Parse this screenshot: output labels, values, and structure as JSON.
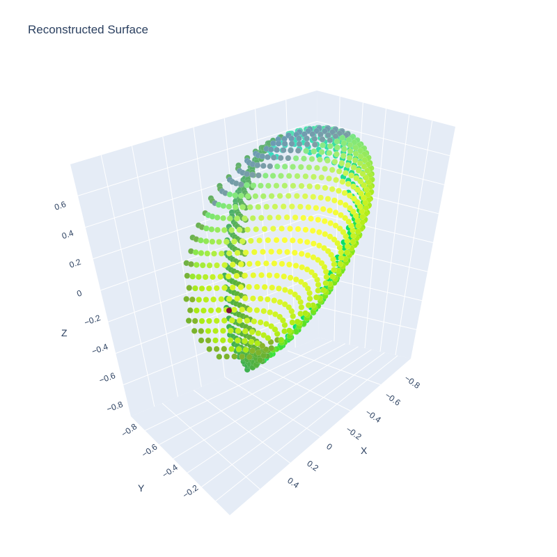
{
  "chart_data": {
    "type": "scatter3d",
    "title": "Reconstructed Surface",
    "xlabel": "X",
    "ylabel": "Y",
    "zlabel": "Z",
    "x_ticks": [
      "−0.8",
      "−0.6",
      "−0.4",
      "−0.2",
      "0",
      "0.2",
      "0.4"
    ],
    "y_ticks": [
      "−0.8",
      "−0.6",
      "−0.4",
      "−0.2"
    ],
    "z_ticks": [
      "0.6",
      "0.4",
      "0.2",
      "0",
      "−0.2",
      "−0.4",
      "−0.6",
      "−0.8"
    ],
    "xlim": [
      -0.9,
      0.9
    ],
    "ylim": [
      -0.9,
      0.9
    ],
    "zlim": [
      -0.9,
      0.75
    ],
    "grid": true,
    "marker": "sphere",
    "surface": "unit-sphere shell with an inner fold, clipped at the +Y side",
    "n_points": 1500,
    "colors": {
      "pane": "#e5ecf6",
      "grid": "#ffffff",
      "text": "#2a3f5f",
      "outlier": "#7f0f3a",
      "point_palette": [
        "#ffff3c",
        "#7de000",
        "#00e06a",
        "#3fdcd0",
        "#7a6db8",
        "#6d8a3e"
      ]
    },
    "outlier_point": {
      "x": 0.6,
      "y": -0.55,
      "z": -0.05
    }
  }
}
